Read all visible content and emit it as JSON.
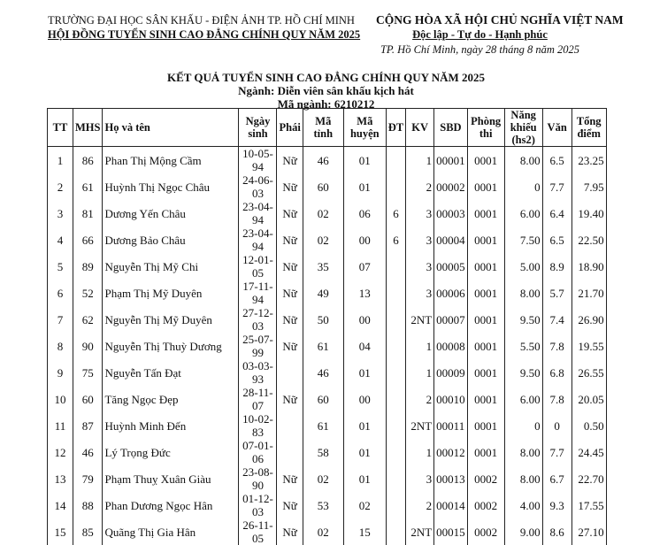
{
  "header": {
    "org_line1": "TRƯỜNG ĐẠI HỌC SÂN KHẤU - ĐIỆN ẢNH TP. HỒ CHÍ MINH",
    "org_line2": "HỘI ĐỒNG TUYỂN SINH CAO ĐẲNG CHÍNH QUY NĂM 2025",
    "nation": "CỘNG HÒA XÃ HỘI CHỦ NGHĨA VIỆT NAM",
    "motto": "Độc lập - Tự do - Hạnh phúc",
    "date": "TP. Hồ Chí Minh, ngày 28 tháng 8 năm 2025"
  },
  "title": {
    "main": "KẾT QUẢ TUYỂN SINH CAO ĐẲNG CHÍNH QUY NĂM 2025",
    "major": "Ngành: Diễn viên sân khấu kịch hát",
    "code": "Mã ngành: 6210212"
  },
  "table": {
    "columns": [
      "TT",
      "MHS",
      "Họ và tên",
      "Ngày sinh",
      "Phái",
      "Mã tỉnh",
      "Mã huyện",
      "ĐT",
      "KV",
      "SBD",
      "Phòng thi",
      "Năng khiếu (hs2)",
      "Văn",
      "Tổng điểm"
    ],
    "rows": [
      [
        "1",
        "86",
        "Phan Thị Mộng Cầm",
        "10-05-94",
        "Nữ",
        "46",
        "01",
        "",
        "1",
        "00001",
        "0001",
        "8.00",
        "6.5",
        "23.25"
      ],
      [
        "2",
        "61",
        "Huỳnh Thị Ngọc Châu",
        "24-06-03",
        "Nữ",
        "60",
        "01",
        "",
        "2",
        "00002",
        "0001",
        "0",
        "7.7",
        "7.95"
      ],
      [
        "3",
        "81",
        "Dương Yến Châu",
        "23-04-94",
        "Nữ",
        "02",
        "06",
        "6",
        "3",
        "00003",
        "0001",
        "6.00",
        "6.4",
        "19.40"
      ],
      [
        "4",
        "66",
        "Dương Bảo Châu",
        "23-04-94",
        "Nữ",
        "02",
        "00",
        "6",
        "3",
        "00004",
        "0001",
        "7.50",
        "6.5",
        "22.50"
      ],
      [
        "5",
        "89",
        "Nguyễn Thị Mỹ Chi",
        "12-01-05",
        "Nữ",
        "35",
        "07",
        "",
        "3",
        "00005",
        "0001",
        "5.00",
        "8.9",
        "18.90"
      ],
      [
        "6",
        "52",
        "Phạm Thị Mỹ Duyên",
        "17-11-94",
        "Nữ",
        "49",
        "13",
        "",
        "3",
        "00006",
        "0001",
        "8.00",
        "5.7",
        "21.70"
      ],
      [
        "7",
        "62",
        "Nguyễn Thị Mỹ Duyên",
        "27-12-03",
        "Nữ",
        "50",
        "00",
        "",
        "2NT",
        "00007",
        "0001",
        "9.50",
        "7.4",
        "26.90"
      ],
      [
        "8",
        "90",
        "Nguyễn Thị Thuỳ Dương",
        "25-07-99",
        "Nữ",
        "61",
        "04",
        "",
        "1",
        "00008",
        "0001",
        "5.50",
        "7.8",
        "19.55"
      ],
      [
        "9",
        "75",
        "Nguyễn Tấn Đạt",
        "03-03-93",
        "",
        "46",
        "01",
        "",
        "1",
        "00009",
        "0001",
        "9.50",
        "6.8",
        "26.55"
      ],
      [
        "10",
        "60",
        "Tăng Ngọc Đẹp",
        "28-11-07",
        "Nữ",
        "60",
        "00",
        "",
        "2",
        "00010",
        "0001",
        "6.00",
        "7.8",
        "20.05"
      ],
      [
        "11",
        "87",
        "Huỳnh Minh Đến",
        "10-02-83",
        "",
        "61",
        "01",
        "",
        "2NT",
        "00011",
        "0001",
        "0",
        "0",
        "0.50"
      ],
      [
        "12",
        "46",
        "Lý Trọng Đức",
        "07-01-06",
        "",
        "58",
        "01",
        "",
        "1",
        "00012",
        "0001",
        "8.00",
        "7.7",
        "24.45"
      ],
      [
        "13",
        "79",
        "Phạm Thuỵ Xuân Giàu",
        "23-08-90",
        "Nữ",
        "02",
        "01",
        "",
        "3",
        "00013",
        "0002",
        "8.00",
        "6.7",
        "22.70"
      ],
      [
        "14",
        "88",
        "Phan Dương Ngọc Hân",
        "01-12-03",
        "Nữ",
        "53",
        "02",
        "",
        "2",
        "00014",
        "0002",
        "4.00",
        "9.3",
        "17.55"
      ],
      [
        "15",
        "85",
        "Quãng Thị Gia Hân",
        "26-11-05",
        "Nữ",
        "02",
        "15",
        "",
        "2NT",
        "00015",
        "0002",
        "9.00",
        "8.6",
        "27.10"
      ]
    ]
  }
}
